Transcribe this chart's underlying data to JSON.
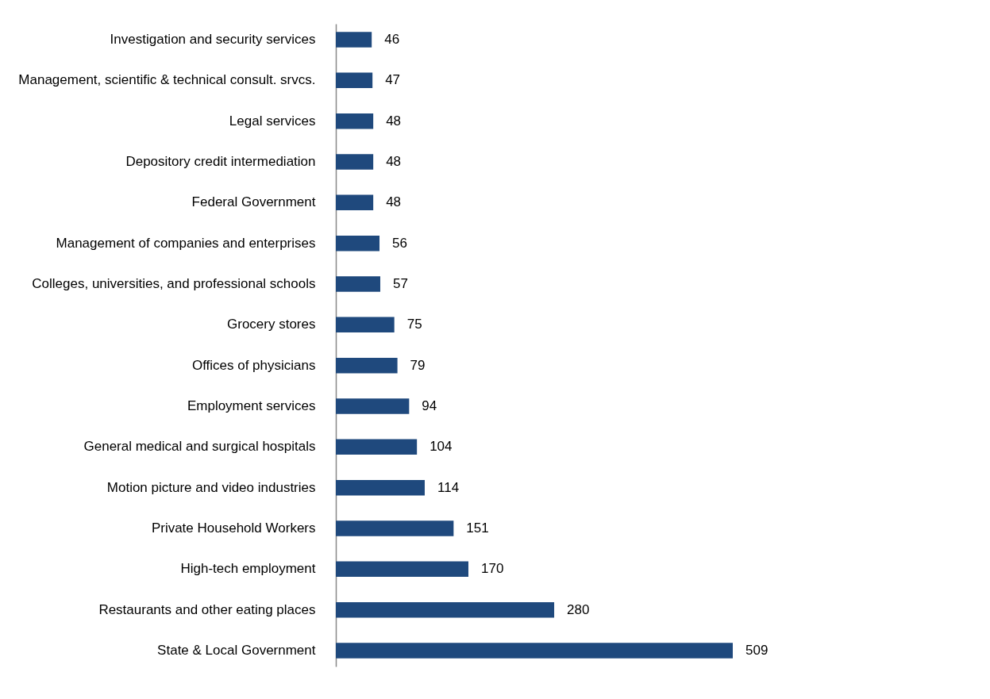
{
  "chart_data": {
    "type": "bar",
    "orientation": "horizontal",
    "categories": [
      "Investigation and security services",
      "Management, scientific & technical consult. srvcs.",
      "Legal services",
      "Depository credit intermediation",
      "Federal Government",
      "Management of companies and enterprises",
      "Colleges, universities, and professional schools",
      "Grocery stores",
      "Offices of physicians",
      "Employment services",
      "General medical and surgical hospitals",
      "Motion picture and video industries",
      "Private Household Workers",
      "High-tech employment",
      "Restaurants and other eating places",
      "State & Local Government"
    ],
    "values": [
      46,
      47,
      48,
      48,
      48,
      56,
      57,
      75,
      79,
      94,
      104,
      114,
      151,
      170,
      280,
      509
    ],
    "color": "#1f497d",
    "data_labels": true
  }
}
